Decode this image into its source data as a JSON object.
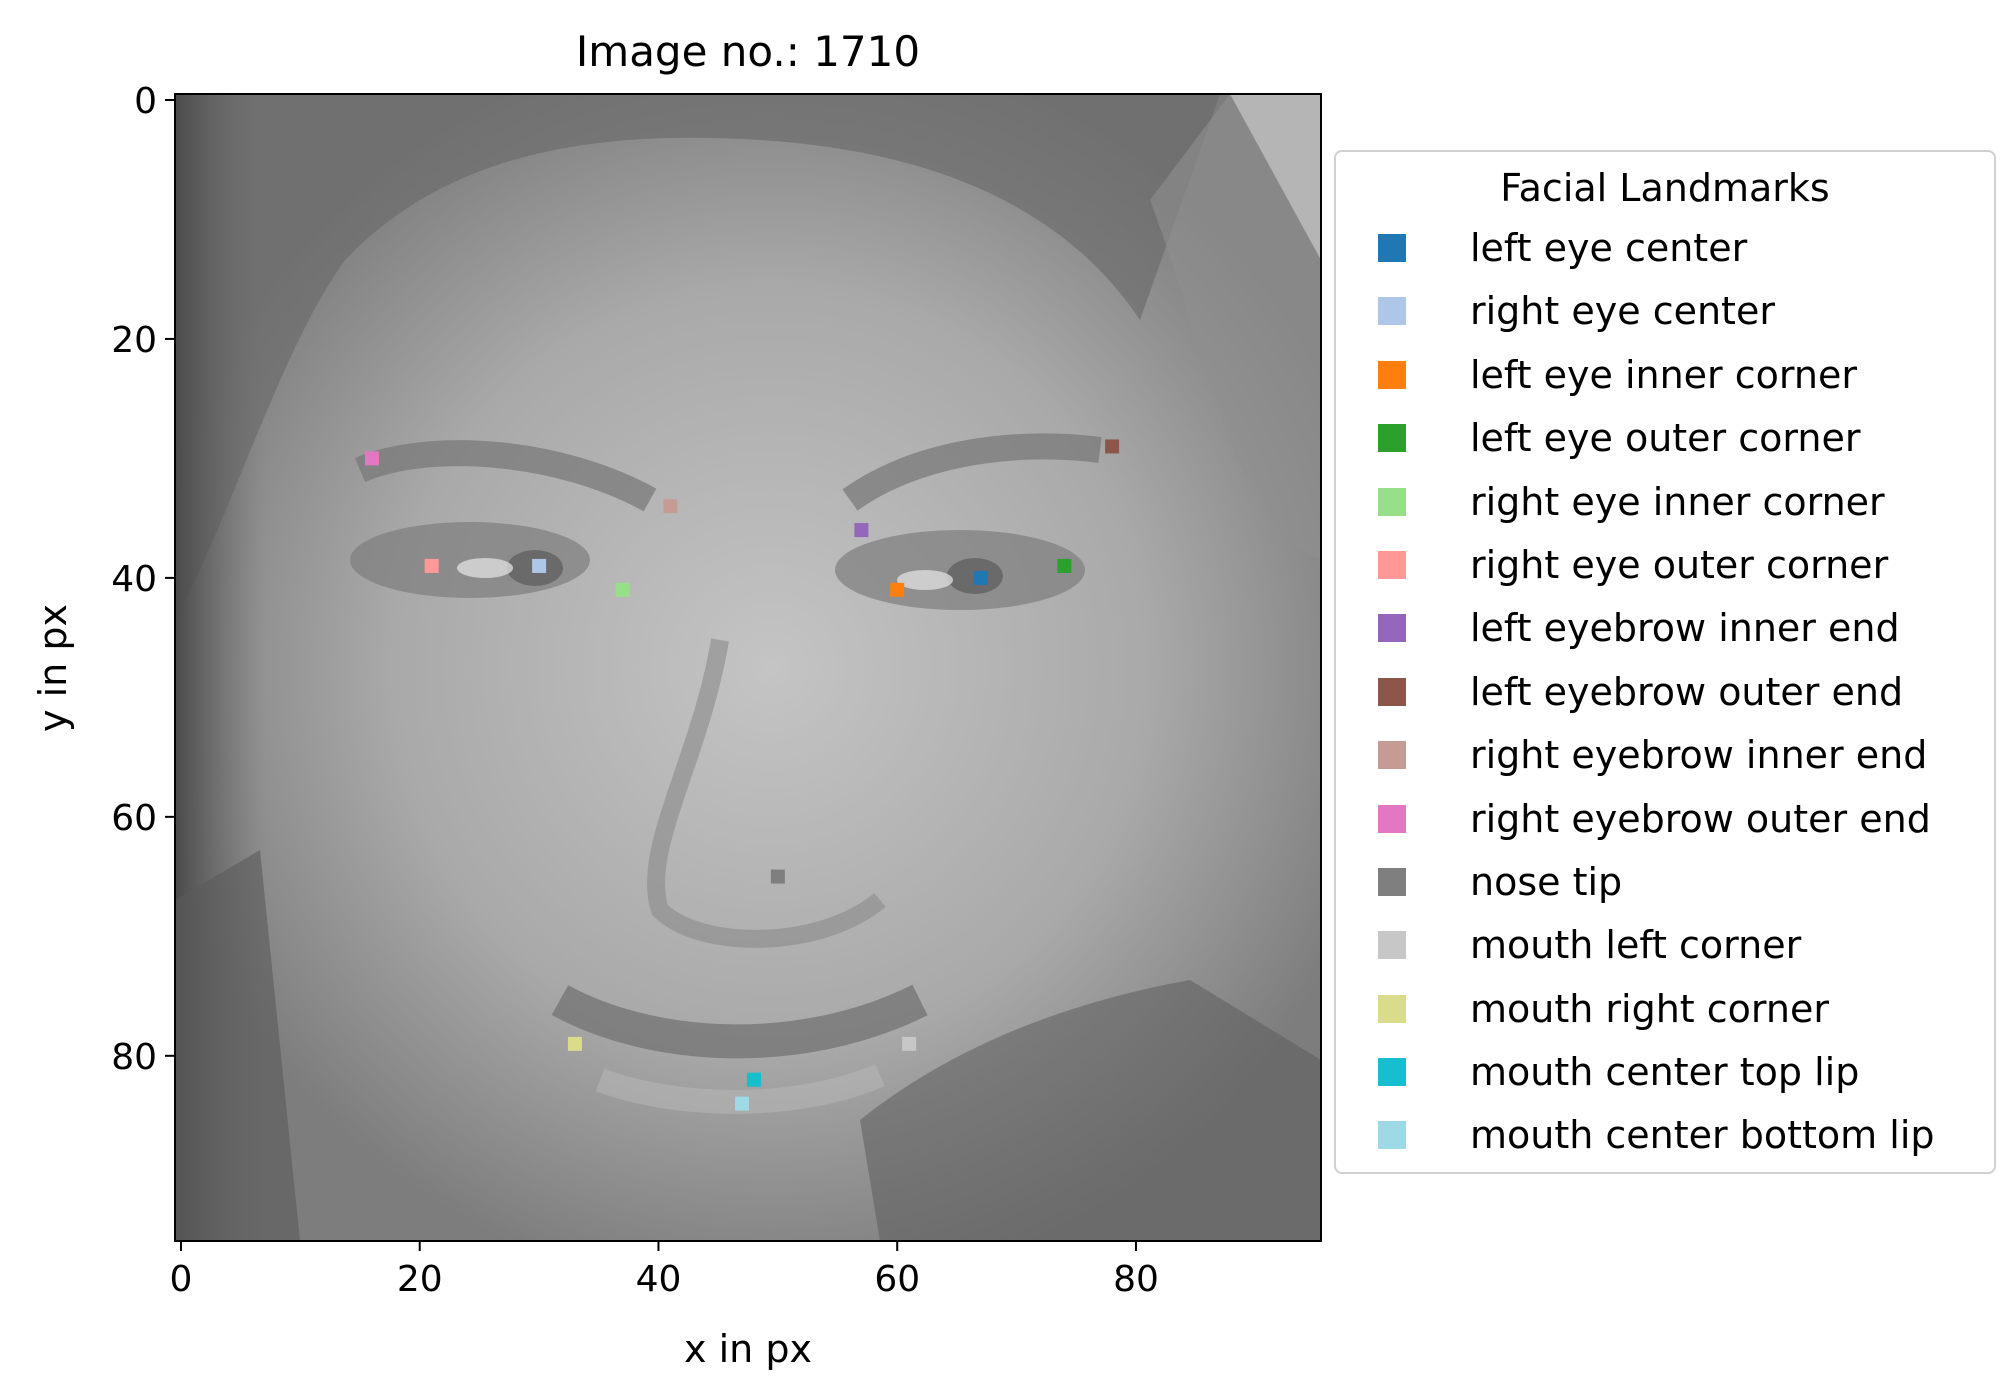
{
  "chart_data": {
    "type": "scatter",
    "title": "Image no.: 1710",
    "xlabel": "x in px",
    "ylabel": "y in px",
    "xlim": [
      -0.5,
      95.5
    ],
    "ylim": [
      95.5,
      -0.5
    ],
    "y_inverted": true,
    "grid": false,
    "background": "grayscale face image, 96 x 96 px",
    "x_ticks": [
      0,
      20,
      40,
      60,
      80
    ],
    "y_ticks": [
      0,
      20,
      40,
      60,
      80
    ],
    "x_tick_labels": [
      "0",
      "20",
      "40",
      "60",
      "80"
    ],
    "y_tick_labels": [
      "0",
      "20",
      "40",
      "60",
      "80"
    ],
    "legend": {
      "title": "Facial Landmarks",
      "placement": "outside-right"
    },
    "series": [
      {
        "name": "left eye center",
        "color": "#1f77b4",
        "x": 67,
        "y": 40
      },
      {
        "name": "right eye center",
        "color": "#aec7e8",
        "x": 30,
        "y": 39
      },
      {
        "name": "left eye inner corner",
        "color": "#ff7f0e",
        "x": 60,
        "y": 41
      },
      {
        "name": "left eye outer corner",
        "color": "#2ca02c",
        "x": 74,
        "y": 39
      },
      {
        "name": "right eye inner corner",
        "color": "#98df8a",
        "x": 37,
        "y": 41
      },
      {
        "name": "right eye outer corner",
        "color": "#ff9896",
        "x": 21,
        "y": 39
      },
      {
        "name": "left eyebrow inner end",
        "color": "#9467bd",
        "x": 57,
        "y": 36
      },
      {
        "name": "left eyebrow outer end",
        "color": "#8c564b",
        "x": 78,
        "y": 29
      },
      {
        "name": "right eyebrow inner end",
        "color": "#c49c94",
        "x": 41,
        "y": 34
      },
      {
        "name": "right eyebrow outer end",
        "color": "#e377c2",
        "x": 16,
        "y": 30
      },
      {
        "name": "nose tip",
        "color": "#7f7f7f",
        "x": 50,
        "y": 65
      },
      {
        "name": "mouth left corner",
        "color": "#c7c7c7",
        "x": 61,
        "y": 79
      },
      {
        "name": "mouth right corner",
        "color": "#dbdb8d",
        "x": 33,
        "y": 79
      },
      {
        "name": "mouth center top lip",
        "color": "#17becf",
        "x": 48,
        "y": 82
      },
      {
        "name": "mouth center bottom lip",
        "color": "#9edae5",
        "x": 47,
        "y": 84
      }
    ]
  }
}
